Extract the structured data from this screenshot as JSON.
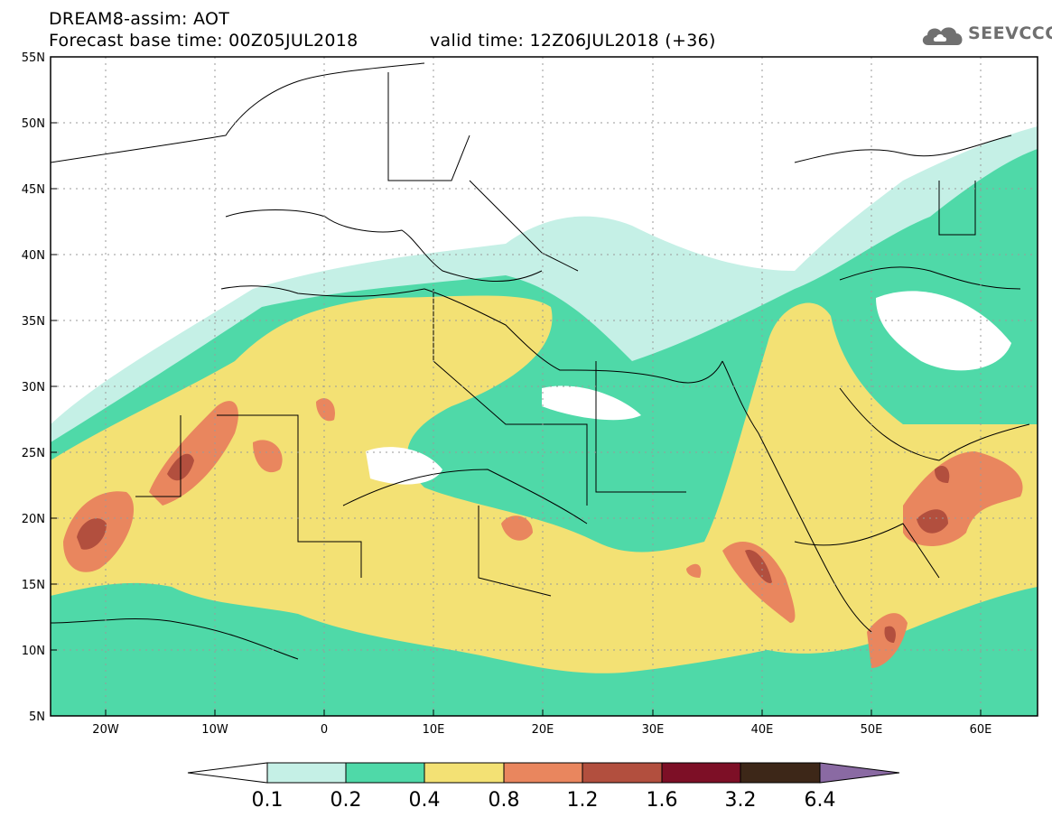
{
  "header": {
    "line1": "DREAM8-assim: AOT",
    "line2": "Forecast base time: 00Z05JUL2018",
    "line3": "valid time: 12Z06JUL2018 (+36)"
  },
  "logo": {
    "text": "SEEVCCC",
    "icon": "cloud-icon"
  },
  "map": {
    "lat_labels": [
      "55N",
      "50N",
      "45N",
      "40N",
      "35N",
      "30N",
      "25N",
      "20N",
      "15N",
      "10N",
      "5N"
    ],
    "lon_labels": [
      "20W",
      "10W",
      "0",
      "10E",
      "20E",
      "30E",
      "40E",
      "50E",
      "60E"
    ]
  },
  "colorbar": {
    "labels": [
      "0.1",
      "0.2",
      "0.4",
      "0.8",
      "1.2",
      "1.6",
      "3.2",
      "6.4"
    ],
    "colors": [
      "#ffffff",
      "#c5f0e6",
      "#4fd9a8",
      "#f3e174",
      "#e9865e",
      "#b24f3e",
      "#7d0f26",
      "#3d2718",
      "#8a6aa3"
    ]
  }
}
